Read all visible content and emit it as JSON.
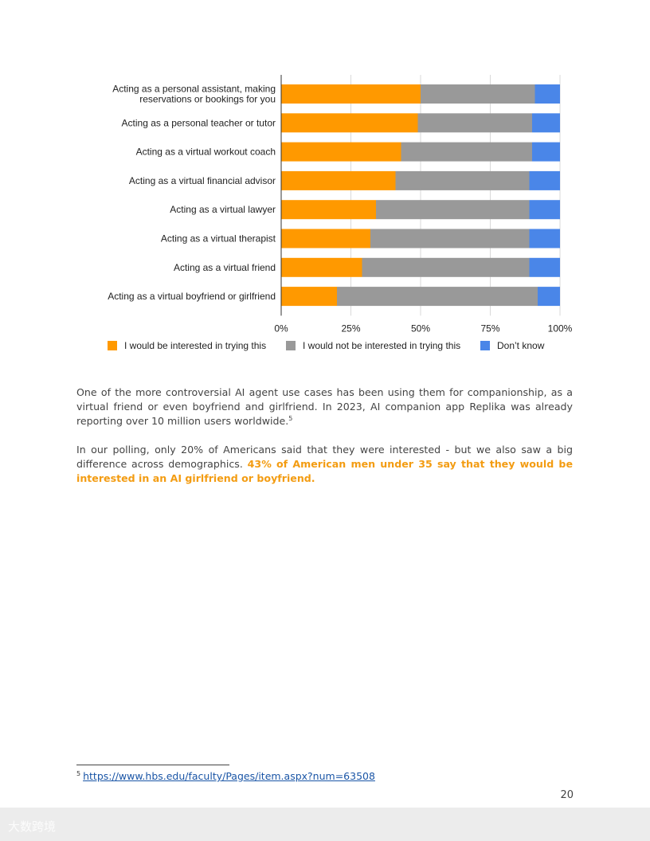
{
  "chart_data": {
    "type": "bar",
    "stacked": true,
    "orientation": "horizontal",
    "percent_stacked": true,
    "categories": [
      "Acting as a personal assistant, making reservations or bookings for you",
      "Acting as a personal teacher or tutor",
      "Acting as a virtual workout coach",
      "Acting as a virtual financial advisor",
      "Acting as a virtual lawyer",
      "Acting as a virtual therapist",
      "Acting as a virtual friend",
      "Acting as a virtual boyfriend or girlfriend"
    ],
    "category_lines": [
      [
        "Acting as a personal assistant, making",
        "reservations or bookings for you"
      ],
      [
        "Acting as a personal teacher or tutor"
      ],
      [
        "Acting as a virtual workout coach"
      ],
      [
        "Acting as a virtual financial advisor"
      ],
      [
        "Acting as a virtual lawyer"
      ],
      [
        "Acting as a virtual therapist"
      ],
      [
        "Acting as a virtual friend"
      ],
      [
        "Acting as a virtual boyfriend or girlfriend"
      ]
    ],
    "series": [
      {
        "name": "I would be interested in trying this",
        "color": "#ff9900",
        "values": [
          50,
          49,
          43,
          41,
          34,
          32,
          29,
          20
        ]
      },
      {
        "name": "I would not be interested in trying this",
        "color": "#999999",
        "values": [
          41,
          41,
          47,
          48,
          55,
          57,
          60,
          72
        ]
      },
      {
        "name": "Don’t know",
        "color": "#4a86e8",
        "values": [
          9,
          10,
          10,
          11,
          11,
          11,
          11,
          8
        ]
      }
    ],
    "xlim": [
      0,
      100
    ],
    "x_ticks": [
      "0%",
      "25%",
      "50%",
      "75%",
      "100%"
    ],
    "grid": true,
    "legend_position": "bottom"
  },
  "body": {
    "para1": "One of the more controversial AI agent use cases has been using them for companionship, as a virtual friend or even boyfriend and girlfriend. In 2023, AI companion app Replika was already reporting over 10 million users worldwide.",
    "para1_sup": "5",
    "para2": "In our polling, only 20% of Americans said that they were interested - but we also saw a big difference across demographics.",
    "para2_highlight": "43% of American men under 35 say that they would be interested in an AI girlfriend or boyfriend."
  },
  "footnote": {
    "number": "5",
    "url": "https://www.hbs.edu/faculty/Pages/item.aspx?num=63508"
  },
  "page_number": "20",
  "watermark": "大数跨境",
  "colors": {
    "highlight": "#f39c12",
    "link": "#1a55a6"
  }
}
